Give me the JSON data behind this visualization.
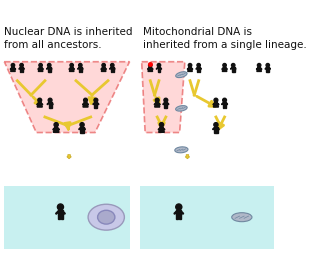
{
  "title_left": "Nuclear DNA is inherited\nfrom all ancestors.",
  "title_right": "Mitochondrial DNA is\ninherited from a single lineage.",
  "bg_color": "#ffffff",
  "arrow_color": "#e8c830",
  "arrow_edge": "#c8a820",
  "bottom_bg": "#c8f0f0",
  "dashed_border": "#dd2222",
  "text_color": "#111111",
  "font_size_title": 7.5
}
